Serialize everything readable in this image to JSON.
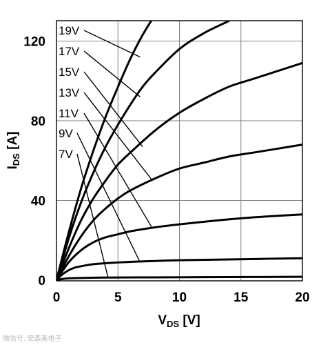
{
  "chart_data": {
    "type": "line",
    "xlabel": "V",
    "xlabel_sub": "DS",
    "xlabel_unit": " [V]",
    "ylabel": "I",
    "ylabel_sub": "DS",
    "ylabel_unit": " [A]",
    "xlim": [
      0,
      20
    ],
    "ylim": [
      0,
      130
    ],
    "xticks": [
      0,
      5,
      10,
      15,
      20
    ],
    "yticks": [
      0,
      40,
      80,
      120
    ],
    "grid": true,
    "series": [
      {
        "name": "19V",
        "x": [
          0,
          1,
          2,
          3,
          4,
          5,
          6,
          7,
          8,
          9
        ],
        "y": [
          0,
          24,
          46,
          65,
          82,
          97,
          111,
          123,
          133,
          142
        ]
      },
      {
        "name": "17V",
        "x": [
          0,
          1,
          2,
          3,
          4,
          5,
          6,
          7,
          8,
          10,
          12,
          14
        ],
        "y": [
          0,
          21,
          39,
          54,
          67,
          78,
          88,
          97,
          104,
          116,
          124,
          130
        ]
      },
      {
        "name": "15V",
        "x": [
          0,
          1,
          2,
          3,
          4,
          5,
          6,
          8,
          10,
          12,
          14,
          16,
          18,
          20
        ],
        "y": [
          0,
          16,
          30,
          41,
          50,
          58,
          64,
          75,
          84,
          91,
          97,
          101,
          105,
          109
        ]
      },
      {
        "name": "13V",
        "x": [
          0,
          1,
          2,
          3,
          4,
          5,
          6,
          8,
          10,
          12,
          14,
          16,
          18,
          20
        ],
        "y": [
          0,
          12,
          22,
          30,
          36,
          41,
          45,
          51,
          56,
          59,
          62,
          64,
          66,
          68
        ]
      },
      {
        "name": "11V",
        "x": [
          0,
          1,
          2,
          3,
          4,
          5,
          6,
          8,
          10,
          12,
          14,
          16,
          18,
          20
        ],
        "y": [
          0,
          9,
          15,
          19,
          21.5,
          23,
          24.5,
          26.5,
          28,
          29.3,
          30.5,
          31.5,
          32.3,
          33
        ]
      },
      {
        "name": "9V",
        "x": [
          0,
          0.5,
          1,
          1.5,
          2,
          3,
          4,
          6,
          8,
          10,
          14,
          20
        ],
        "y": [
          0,
          3,
          5,
          6.3,
          7,
          8,
          8.5,
          9.2,
          9.6,
          10,
          10.4,
          11
        ]
      },
      {
        "name": "7V",
        "x": [
          0,
          0.5,
          1,
          2,
          4,
          8,
          12,
          20
        ],
        "y": [
          0,
          0.6,
          0.9,
          1.1,
          1.3,
          1.4,
          1.5,
          1.7
        ]
      }
    ],
    "labels": [
      {
        "series": "19V",
        "text": "19V",
        "target": [
          6.8,
          112
        ]
      },
      {
        "series": "17V",
        "text": "17V",
        "target": [
          6.8,
          92
        ]
      },
      {
        "series": "15V",
        "text": "15V",
        "target": [
          7,
          67
        ]
      },
      {
        "series": "13V",
        "text": "13V",
        "target": [
          7.8,
          50
        ]
      },
      {
        "series": "11V",
        "text": "11V",
        "target": [
          7.8,
          26
        ]
      },
      {
        "series": "9V",
        "text": "9V",
        "target": [
          6.8,
          9
        ]
      },
      {
        "series": "7V",
        "text": "7V",
        "target": [
          4.2,
          1.2
        ]
      }
    ]
  },
  "watermark": "微信号: 安森美电子"
}
